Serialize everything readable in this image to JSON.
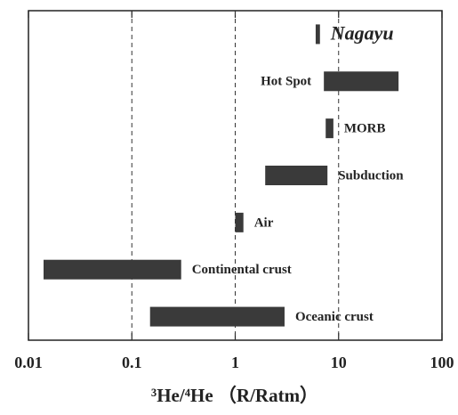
{
  "chart_data": {
    "type": "range_bar",
    "categories": [
      "Nagayu",
      "Hot Spot",
      "MORB",
      "Subduction",
      "Air",
      "Continental crust",
      "Oceanic crust"
    ],
    "values": [
      [
        6.0,
        6.6
      ],
      [
        7.2,
        38
      ],
      [
        7.5,
        8.9
      ],
      [
        1.95,
        7.8
      ],
      [
        1.0,
        1.2
      ],
      [
        0.014,
        0.3
      ],
      [
        0.15,
        3.0
      ]
    ],
    "label_position": [
      "right",
      "left",
      "right",
      "right",
      "right",
      "right",
      "right"
    ],
    "label_style": [
      "emphasis",
      "normal",
      "normal",
      "normal",
      "normal",
      "normal",
      "normal"
    ],
    "color": "#3a3a3a",
    "xlabel": "³He/⁴He （R/Ratm）",
    "xscale": "log",
    "xlim": [
      0.01,
      100
    ],
    "xticks": [
      0.01,
      0.1,
      1,
      10,
      100
    ],
    "grid": true
  }
}
